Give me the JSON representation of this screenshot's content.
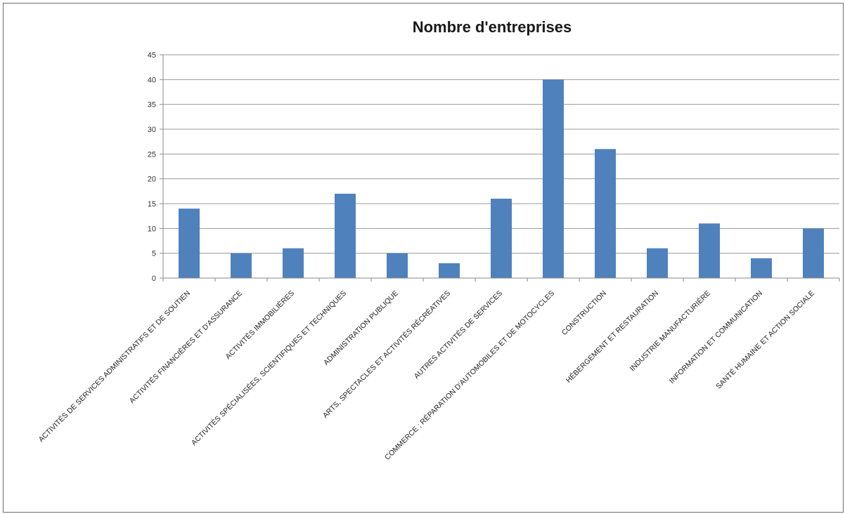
{
  "chart_data": {
    "type": "bar",
    "title": "Nombre d'entreprises",
    "xlabel": "",
    "ylabel": "",
    "ylim": [
      0,
      45
    ],
    "yticks": [
      0,
      5,
      10,
      15,
      20,
      25,
      30,
      35,
      40,
      45
    ],
    "grid": true,
    "legend": "none",
    "bar_color": "#4f81bd",
    "categories": [
      "ACTIVITÉS DE SERVICES ADMINISTRATIFS ET DE SOUTIEN",
      "ACTIVITÉS FINANCIÈRES ET D'ASSURANCE",
      "ACTIVITÉS IMMOBILIÈRES",
      "ACTIVITÉS SPÉCIALISÉES, SCIENTIFIQUES ET TECHNIQUES",
      "ADMINISTRATION PUBLIQUE",
      "ARTS, SPECTACLES ET ACTIVITÉS RÉCRÉATIVES",
      "AUTRES ACTIVITÉS DE SERVICES",
      "COMMERCE ; RÉPARATION D'AUTOMOBILES ET DE MOTOCYCLES",
      "CONSTRUCTION",
      "HÉBERGEMENT ET RESTAURATION",
      "INDUSTRIE MANUFACTURIÈRE",
      "INFORMATION ET COMMUNICATION",
      "SANTÉ HUMAINE ET ACTION SOCIALE"
    ],
    "values": [
      14,
      5,
      6,
      17,
      5,
      3,
      16,
      40,
      26,
      6,
      11,
      4,
      10
    ]
  }
}
